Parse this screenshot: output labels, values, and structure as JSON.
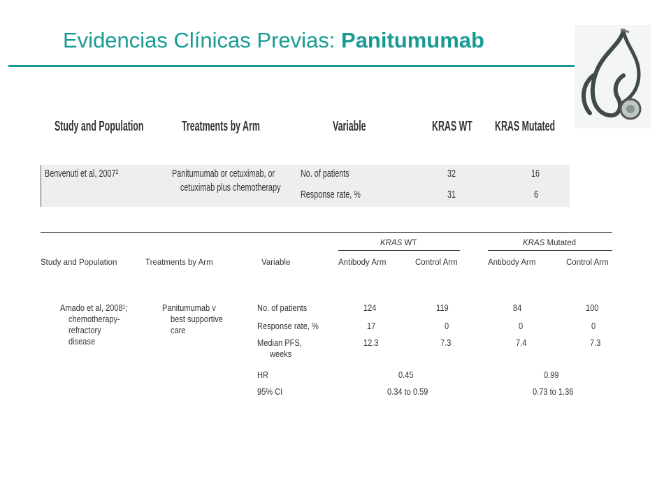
{
  "title": {
    "regular": "Evidencias Clínicas Previas:",
    "bold": "Panitumumab"
  },
  "colors": {
    "accent": "#1a9a94"
  },
  "icons": {
    "corner": "stethoscope-icon"
  },
  "table1": {
    "headers": [
      "Study and Population",
      "Treatments by Arm",
      "Variable",
      "KRAS WT",
      "KRAS Mutated"
    ],
    "study": "Benvenuti et al, 2007²",
    "treatment_line1": "Panitumumab or cetuximab, or",
    "treatment_line2": "cetuximab plus chemotherapy",
    "rows": [
      {
        "variable": "No. of patients",
        "wt": "32",
        "mut": "16"
      },
      {
        "variable": "Response rate, %",
        "wt": "31",
        "mut": "6"
      }
    ]
  },
  "table2": {
    "group_wt": "KRAS",
    "group_wt_suffix": " WT",
    "group_mut": "KRAS",
    "group_mut_suffix": " Mutated",
    "headers": {
      "study": "Study and Population",
      "treat": "Treatments by Arm",
      "variable": "Variable",
      "wt_ab": "Antibody Arm",
      "wt_ctrl": "Control Arm",
      "mut_ab": "Antibody Arm",
      "mut_ctrl": "Control Arm"
    },
    "study_lines": [
      "Amado et al, 2008¹;",
      "chemotherapy-",
      "refractory",
      "disease"
    ],
    "treat_lines": [
      "Panitumumab v",
      "best supportive",
      "care"
    ],
    "rows": [
      {
        "variable": "No. of patients",
        "wt_ab": "124",
        "wt_ctrl": "119",
        "mut_ab": "84",
        "mut_ctrl": "100"
      },
      {
        "variable": "Response rate, %",
        "wt_ab": "17",
        "wt_ctrl": "0",
        "mut_ab": "0",
        "mut_ctrl": "0"
      },
      {
        "variable": "Median PFS,",
        "variable2": "weeks",
        "wt_ab": "12.3",
        "wt_ctrl": "7.3",
        "mut_ab": "7.4",
        "mut_ctrl": "7.3"
      }
    ],
    "hr": {
      "label": "HR",
      "wt": "0.45",
      "mut": "0.99"
    },
    "ci": {
      "label": "95% CI",
      "wt": "0.34 to 0.59",
      "mut": "0.73 to 1.36"
    }
  }
}
